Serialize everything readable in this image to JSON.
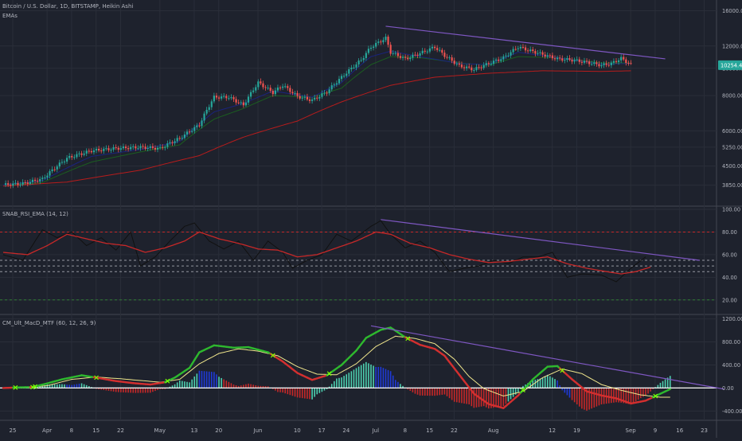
{
  "header": {
    "symbol": "Bitcoin / U.S. Dollar, 1D, BITSTAMP, Heikin Ashi",
    "indicator": "EMAs"
  },
  "colors": {
    "background": "#1e222d",
    "grid": "#2a2e39",
    "axis_text": "#b2b5be",
    "bull": "#26a69a",
    "bear": "#ef5350",
    "ema_fast": "#1a237e",
    "ema_mid": "#1b5e20",
    "ema_slow": "#b71c1c",
    "trendline": "#7e57c2",
    "rsi": "#111111",
    "rsi_ema": "#c62828",
    "macd_fast": "#2eb82e",
    "macd_fast_dn": "#d32f2f",
    "signal": "#f0e68c",
    "zero_line": "#ffffff",
    "hist_up": "#4dd0b0",
    "hist_upweak": "#1e3ad8",
    "hist_dn": "#c62828",
    "price_badge": "#26a69a"
  },
  "chart_data": [
    {
      "type": "candlestick",
      "title": "Bitcoin / U.S. Dollar, 1D, BITSTAMP, Heikin Ashi",
      "legend": [
        "EMAs"
      ],
      "y_scale": "log",
      "y_ticks": [
        "16000.00",
        "12000.00",
        "10000.00",
        "8000.00",
        "6000.00",
        "5250.00",
        "4500.00",
        "3850.00"
      ],
      "y_tick_values": [
        16000,
        12000,
        10000,
        8000,
        6000,
        5250,
        4500,
        3850
      ],
      "ylim": [
        3350,
        16800
      ],
      "last_price": "10254.40",
      "x_labels": [
        "25",
        "Apr",
        "8",
        "15",
        "22",
        "May",
        "13",
        "20",
        "Jun",
        "10",
        "17",
        "24",
        "Jul",
        "8",
        "15",
        "22",
        "Aug",
        "12",
        "19",
        "Sep",
        "9",
        "16",
        "23"
      ],
      "close_path": [
        [
          0,
          3860
        ],
        [
          8,
          3900
        ],
        [
          16,
          4050
        ],
        [
          26,
          4800
        ],
        [
          36,
          5100
        ],
        [
          46,
          5200
        ],
        [
          56,
          5250
        ],
        [
          64,
          5200
        ],
        [
          72,
          5650
        ],
        [
          80,
          6300
        ],
        [
          86,
          7900
        ],
        [
          92,
          7900
        ],
        [
          98,
          7400
        ],
        [
          104,
          8900
        ],
        [
          110,
          8200
        ],
        [
          114,
          8700
        ],
        [
          120,
          7950
        ],
        [
          126,
          7700
        ],
        [
          132,
          8250
        ],
        [
          138,
          9300
        ],
        [
          146,
          10700
        ],
        [
          150,
          11900
        ],
        [
          156,
          12800
        ],
        [
          158,
          11400
        ],
        [
          164,
          10800
        ],
        [
          170,
          11300
        ],
        [
          176,
          11900
        ],
        [
          180,
          11100
        ],
        [
          186,
          10200
        ],
        [
          192,
          9900
        ],
        [
          198,
          10400
        ],
        [
          204,
          10900
        ],
        [
          210,
          11900
        ],
        [
          214,
          11600
        ],
        [
          220,
          11200
        ],
        [
          226,
          10800
        ],
        [
          232,
          10700
        ],
        [
          238,
          10500
        ],
        [
          244,
          10250
        ],
        [
          248,
          10400
        ],
        [
          252,
          10850
        ],
        [
          256,
          10300
        ]
      ],
      "ema_fast_path": [
        [
          0,
          3860
        ],
        [
          16,
          3990
        ],
        [
          36,
          4870
        ],
        [
          56,
          5150
        ],
        [
          72,
          5500
        ],
        [
          86,
          7000
        ],
        [
          98,
          7500
        ],
        [
          110,
          8300
        ],
        [
          126,
          7900
        ],
        [
          138,
          8900
        ],
        [
          150,
          11000
        ],
        [
          158,
          11500
        ],
        [
          170,
          11000
        ],
        [
          186,
          10400
        ],
        [
          198,
          10300
        ],
        [
          210,
          11400
        ],
        [
          226,
          10900
        ],
        [
          244,
          10350
        ],
        [
          256,
          10400
        ]
      ],
      "ema_mid_path": [
        [
          0,
          3860
        ],
        [
          16,
          3930
        ],
        [
          36,
          4650
        ],
        [
          56,
          5050
        ],
        [
          72,
          5350
        ],
        [
          86,
          6600
        ],
        [
          98,
          7200
        ],
        [
          110,
          8000
        ],
        [
          126,
          7900
        ],
        [
          138,
          8500
        ],
        [
          150,
          10300
        ],
        [
          158,
          11000
        ],
        [
          170,
          10900
        ],
        [
          186,
          10450
        ],
        [
          198,
          10250
        ],
        [
          210,
          11000
        ],
        [
          226,
          10900
        ],
        [
          244,
          10450
        ],
        [
          256,
          10450
        ]
      ],
      "ema_slow_path": [
        [
          0,
          3820
        ],
        [
          26,
          3950
        ],
        [
          56,
          4350
        ],
        [
          80,
          4900
        ],
        [
          98,
          5700
        ],
        [
          120,
          6500
        ],
        [
          138,
          7600
        ],
        [
          158,
          8700
        ],
        [
          176,
          9300
        ],
        [
          198,
          9600
        ],
        [
          220,
          9800
        ],
        [
          244,
          9750
        ],
        [
          256,
          9800
        ]
      ],
      "trendline": [
        [
          156,
          14100
        ],
        [
          270,
          10800
        ]
      ]
    },
    {
      "type": "line",
      "title": "SNAB_RSI_EMA (14, 12)",
      "series": [
        {
          "name": "RSI"
        },
        {
          "name": "EMA"
        }
      ],
      "y_ticks": [
        "100.00",
        "80.00",
        "60.00",
        "40.00",
        "20.00"
      ],
      "ylim": [
        10,
        100
      ],
      "levels": [
        80,
        55,
        50,
        45,
        20
      ],
      "rsi_path": [
        [
          0,
          60
        ],
        [
          8,
          55
        ],
        [
          16,
          82
        ],
        [
          22,
          75
        ],
        [
          28,
          80
        ],
        [
          34,
          68
        ],
        [
          40,
          75
        ],
        [
          46,
          64
        ],
        [
          52,
          80
        ],
        [
          56,
          50
        ],
        [
          62,
          58
        ],
        [
          68,
          72
        ],
        [
          74,
          85
        ],
        [
          78,
          88
        ],
        [
          84,
          72
        ],
        [
          90,
          65
        ],
        [
          96,
          72
        ],
        [
          102,
          55
        ],
        [
          108,
          72
        ],
        [
          114,
          62
        ],
        [
          118,
          48
        ],
        [
          124,
          55
        ],
        [
          130,
          60
        ],
        [
          136,
          78
        ],
        [
          142,
          72
        ],
        [
          150,
          85
        ],
        [
          154,
          90
        ],
        [
          158,
          78
        ],
        [
          164,
          66
        ],
        [
          170,
          72
        ],
        [
          176,
          62
        ],
        [
          182,
          45
        ],
        [
          188,
          48
        ],
        [
          194,
          50
        ],
        [
          200,
          55
        ],
        [
          206,
          52
        ],
        [
          212,
          58
        ],
        [
          218,
          58
        ],
        [
          224,
          62
        ],
        [
          230,
          40
        ],
        [
          236,
          43
        ],
        [
          244,
          42
        ],
        [
          250,
          36
        ],
        [
          256,
          48
        ],
        [
          262,
          58
        ]
      ],
      "rsi_ema_path": [
        [
          0,
          62
        ],
        [
          10,
          60
        ],
        [
          18,
          68
        ],
        [
          26,
          78
        ],
        [
          34,
          74
        ],
        [
          42,
          70
        ],
        [
          50,
          68
        ],
        [
          58,
          62
        ],
        [
          66,
          66
        ],
        [
          74,
          72
        ],
        [
          80,
          80
        ],
        [
          88,
          74
        ],
        [
          96,
          70
        ],
        [
          104,
          65
        ],
        [
          112,
          64
        ],
        [
          120,
          58
        ],
        [
          128,
          60
        ],
        [
          136,
          66
        ],
        [
          144,
          72
        ],
        [
          152,
          80
        ],
        [
          158,
          78
        ],
        [
          166,
          70
        ],
        [
          174,
          66
        ],
        [
          182,
          60
        ],
        [
          190,
          56
        ],
        [
          198,
          53
        ],
        [
          206,
          54
        ],
        [
          214,
          56
        ],
        [
          222,
          58
        ],
        [
          230,
          52
        ],
        [
          238,
          48
        ],
        [
          246,
          45
        ],
        [
          252,
          43
        ],
        [
          258,
          45
        ],
        [
          264,
          49
        ]
      ],
      "trendline": [
        [
          154,
          91
        ],
        [
          284,
          55
        ]
      ]
    },
    {
      "type": "line",
      "title": "CM_Ult_MacD_MTF (60, 12, 26, 9)",
      "series": [
        {
          "name": "MACD"
        },
        {
          "name": "Signal"
        },
        {
          "name": "Histogram"
        }
      ],
      "y_ticks": [
        "1200.00",
        "800.00",
        "400.00",
        "0.00",
        "-400.00"
      ],
      "ylim": [
        -520,
        1250
      ],
      "macd_path": [
        [
          0,
          0
        ],
        [
          6,
          10
        ],
        [
          12,
          15
        ],
        [
          18,
          80
        ],
        [
          24,
          150
        ],
        [
          32,
          220
        ],
        [
          38,
          180
        ],
        [
          46,
          120
        ],
        [
          54,
          80
        ],
        [
          60,
          60
        ],
        [
          66,
          100
        ],
        [
          70,
          180
        ],
        [
          76,
          350
        ],
        [
          80,
          620
        ],
        [
          86,
          740
        ],
        [
          94,
          700
        ],
        [
          100,
          710
        ],
        [
          108,
          620
        ],
        [
          114,
          460
        ],
        [
          120,
          260
        ],
        [
          126,
          140
        ],
        [
          132,
          220
        ],
        [
          138,
          400
        ],
        [
          144,
          650
        ],
        [
          148,
          870
        ],
        [
          154,
          1010
        ],
        [
          158,
          1050
        ],
        [
          164,
          880
        ],
        [
          170,
          750
        ],
        [
          176,
          680
        ],
        [
          180,
          560
        ],
        [
          186,
          230
        ],
        [
          192,
          -100
        ],
        [
          198,
          -280
        ],
        [
          204,
          -350
        ],
        [
          210,
          -130
        ],
        [
          216,
          150
        ],
        [
          222,
          370
        ],
        [
          226,
          380
        ],
        [
          232,
          150
        ],
        [
          238,
          -60
        ],
        [
          244,
          -130
        ],
        [
          250,
          -180
        ],
        [
          256,
          -270
        ],
        [
          262,
          -220
        ],
        [
          268,
          -100
        ],
        [
          272,
          -20
        ]
      ],
      "signal_path": [
        [
          0,
          5
        ],
        [
          10,
          10
        ],
        [
          18,
          40
        ],
        [
          28,
          150
        ],
        [
          38,
          190
        ],
        [
          48,
          160
        ],
        [
          56,
          130
        ],
        [
          64,
          100
        ],
        [
          72,
          150
        ],
        [
          80,
          420
        ],
        [
          88,
          600
        ],
        [
          96,
          680
        ],
        [
          104,
          640
        ],
        [
          112,
          560
        ],
        [
          120,
          370
        ],
        [
          128,
          240
        ],
        [
          136,
          230
        ],
        [
          144,
          420
        ],
        [
          152,
          720
        ],
        [
          160,
          900
        ],
        [
          168,
          860
        ],
        [
          176,
          770
        ],
        [
          184,
          500
        ],
        [
          190,
          200
        ],
        [
          196,
          -10
        ],
        [
          204,
          -140
        ],
        [
          212,
          -60
        ],
        [
          220,
          180
        ],
        [
          228,
          330
        ],
        [
          236,
          250
        ],
        [
          244,
          60
        ],
        [
          252,
          -40
        ],
        [
          260,
          -120
        ],
        [
          268,
          -160
        ],
        [
          272,
          -160
        ]
      ],
      "histogram_bands": [
        [
          0,
          20,
          "hist_up"
        ],
        [
          18,
          26,
          "hist_up"
        ],
        [
          26,
          32,
          "hist_upweak"
        ],
        [
          40,
          58,
          "hist_dn"
        ],
        [
          68,
          80,
          "hist_up"
        ],
        [
          80,
          88,
          "hist_upweak"
        ],
        [
          90,
          112,
          "hist_dn"
        ],
        [
          126,
          138,
          "hist_up"
        ],
        [
          138,
          152,
          "hist_up"
        ],
        [
          152,
          162,
          "hist_upweak"
        ],
        [
          164,
          200,
          "hist_dn"
        ],
        [
          206,
          226,
          "hist_up"
        ],
        [
          226,
          232,
          "hist_upweak"
        ],
        [
          234,
          262,
          "hist_dn"
        ],
        [
          266,
          272,
          "hist_up"
        ]
      ],
      "trendline": [
        [
          150,
          1080
        ],
        [
          294,
          -20
        ]
      ]
    }
  ]
}
